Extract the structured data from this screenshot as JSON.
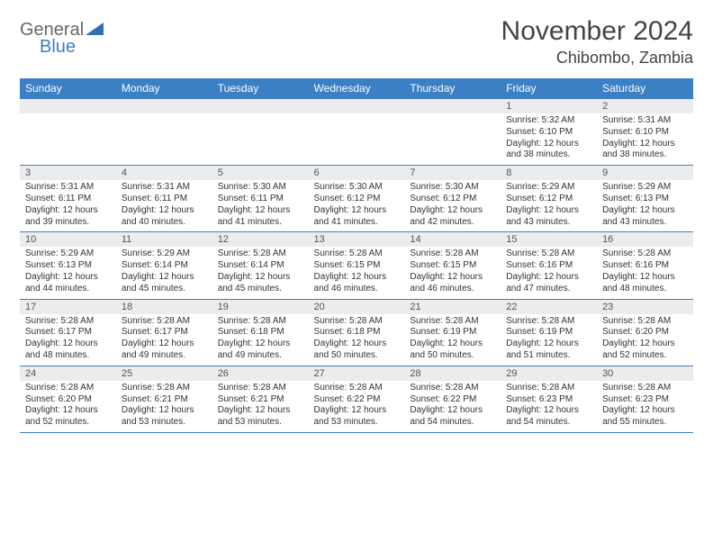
{
  "logo": {
    "text1": "General",
    "text2": "Blue"
  },
  "title": "November 2024",
  "location": "Chibombo, Zambia",
  "colors": {
    "header_bg": "#3b7fc4",
    "header_fg": "#ffffff",
    "dayhead_bg": "#ececec",
    "border": "#3b7fc4"
  },
  "daysOfWeek": [
    "Sunday",
    "Monday",
    "Tuesday",
    "Wednesday",
    "Thursday",
    "Friday",
    "Saturday"
  ],
  "weeks": [
    [
      {
        "n": "",
        "sr": "",
        "ss": "",
        "dl": ""
      },
      {
        "n": "",
        "sr": "",
        "ss": "",
        "dl": ""
      },
      {
        "n": "",
        "sr": "",
        "ss": "",
        "dl": ""
      },
      {
        "n": "",
        "sr": "",
        "ss": "",
        "dl": ""
      },
      {
        "n": "",
        "sr": "",
        "ss": "",
        "dl": ""
      },
      {
        "n": "1",
        "sr": "Sunrise: 5:32 AM",
        "ss": "Sunset: 6:10 PM",
        "dl": "Daylight: 12 hours and 38 minutes."
      },
      {
        "n": "2",
        "sr": "Sunrise: 5:31 AM",
        "ss": "Sunset: 6:10 PM",
        "dl": "Daylight: 12 hours and 38 minutes."
      }
    ],
    [
      {
        "n": "3",
        "sr": "Sunrise: 5:31 AM",
        "ss": "Sunset: 6:11 PM",
        "dl": "Daylight: 12 hours and 39 minutes."
      },
      {
        "n": "4",
        "sr": "Sunrise: 5:31 AM",
        "ss": "Sunset: 6:11 PM",
        "dl": "Daylight: 12 hours and 40 minutes."
      },
      {
        "n": "5",
        "sr": "Sunrise: 5:30 AM",
        "ss": "Sunset: 6:11 PM",
        "dl": "Daylight: 12 hours and 41 minutes."
      },
      {
        "n": "6",
        "sr": "Sunrise: 5:30 AM",
        "ss": "Sunset: 6:12 PM",
        "dl": "Daylight: 12 hours and 41 minutes."
      },
      {
        "n": "7",
        "sr": "Sunrise: 5:30 AM",
        "ss": "Sunset: 6:12 PM",
        "dl": "Daylight: 12 hours and 42 minutes."
      },
      {
        "n": "8",
        "sr": "Sunrise: 5:29 AM",
        "ss": "Sunset: 6:12 PM",
        "dl": "Daylight: 12 hours and 43 minutes."
      },
      {
        "n": "9",
        "sr": "Sunrise: 5:29 AM",
        "ss": "Sunset: 6:13 PM",
        "dl": "Daylight: 12 hours and 43 minutes."
      }
    ],
    [
      {
        "n": "10",
        "sr": "Sunrise: 5:29 AM",
        "ss": "Sunset: 6:13 PM",
        "dl": "Daylight: 12 hours and 44 minutes."
      },
      {
        "n": "11",
        "sr": "Sunrise: 5:29 AM",
        "ss": "Sunset: 6:14 PM",
        "dl": "Daylight: 12 hours and 45 minutes."
      },
      {
        "n": "12",
        "sr": "Sunrise: 5:28 AM",
        "ss": "Sunset: 6:14 PM",
        "dl": "Daylight: 12 hours and 45 minutes."
      },
      {
        "n": "13",
        "sr": "Sunrise: 5:28 AM",
        "ss": "Sunset: 6:15 PM",
        "dl": "Daylight: 12 hours and 46 minutes."
      },
      {
        "n": "14",
        "sr": "Sunrise: 5:28 AM",
        "ss": "Sunset: 6:15 PM",
        "dl": "Daylight: 12 hours and 46 minutes."
      },
      {
        "n": "15",
        "sr": "Sunrise: 5:28 AM",
        "ss": "Sunset: 6:16 PM",
        "dl": "Daylight: 12 hours and 47 minutes."
      },
      {
        "n": "16",
        "sr": "Sunrise: 5:28 AM",
        "ss": "Sunset: 6:16 PM",
        "dl": "Daylight: 12 hours and 48 minutes."
      }
    ],
    [
      {
        "n": "17",
        "sr": "Sunrise: 5:28 AM",
        "ss": "Sunset: 6:17 PM",
        "dl": "Daylight: 12 hours and 48 minutes."
      },
      {
        "n": "18",
        "sr": "Sunrise: 5:28 AM",
        "ss": "Sunset: 6:17 PM",
        "dl": "Daylight: 12 hours and 49 minutes."
      },
      {
        "n": "19",
        "sr": "Sunrise: 5:28 AM",
        "ss": "Sunset: 6:18 PM",
        "dl": "Daylight: 12 hours and 49 minutes."
      },
      {
        "n": "20",
        "sr": "Sunrise: 5:28 AM",
        "ss": "Sunset: 6:18 PM",
        "dl": "Daylight: 12 hours and 50 minutes."
      },
      {
        "n": "21",
        "sr": "Sunrise: 5:28 AM",
        "ss": "Sunset: 6:19 PM",
        "dl": "Daylight: 12 hours and 50 minutes."
      },
      {
        "n": "22",
        "sr": "Sunrise: 5:28 AM",
        "ss": "Sunset: 6:19 PM",
        "dl": "Daylight: 12 hours and 51 minutes."
      },
      {
        "n": "23",
        "sr": "Sunrise: 5:28 AM",
        "ss": "Sunset: 6:20 PM",
        "dl": "Daylight: 12 hours and 52 minutes."
      }
    ],
    [
      {
        "n": "24",
        "sr": "Sunrise: 5:28 AM",
        "ss": "Sunset: 6:20 PM",
        "dl": "Daylight: 12 hours and 52 minutes."
      },
      {
        "n": "25",
        "sr": "Sunrise: 5:28 AM",
        "ss": "Sunset: 6:21 PM",
        "dl": "Daylight: 12 hours and 53 minutes."
      },
      {
        "n": "26",
        "sr": "Sunrise: 5:28 AM",
        "ss": "Sunset: 6:21 PM",
        "dl": "Daylight: 12 hours and 53 minutes."
      },
      {
        "n": "27",
        "sr": "Sunrise: 5:28 AM",
        "ss": "Sunset: 6:22 PM",
        "dl": "Daylight: 12 hours and 53 minutes."
      },
      {
        "n": "28",
        "sr": "Sunrise: 5:28 AM",
        "ss": "Sunset: 6:22 PM",
        "dl": "Daylight: 12 hours and 54 minutes."
      },
      {
        "n": "29",
        "sr": "Sunrise: 5:28 AM",
        "ss": "Sunset: 6:23 PM",
        "dl": "Daylight: 12 hours and 54 minutes."
      },
      {
        "n": "30",
        "sr": "Sunrise: 5:28 AM",
        "ss": "Sunset: 6:23 PM",
        "dl": "Daylight: 12 hours and 55 minutes."
      }
    ]
  ]
}
